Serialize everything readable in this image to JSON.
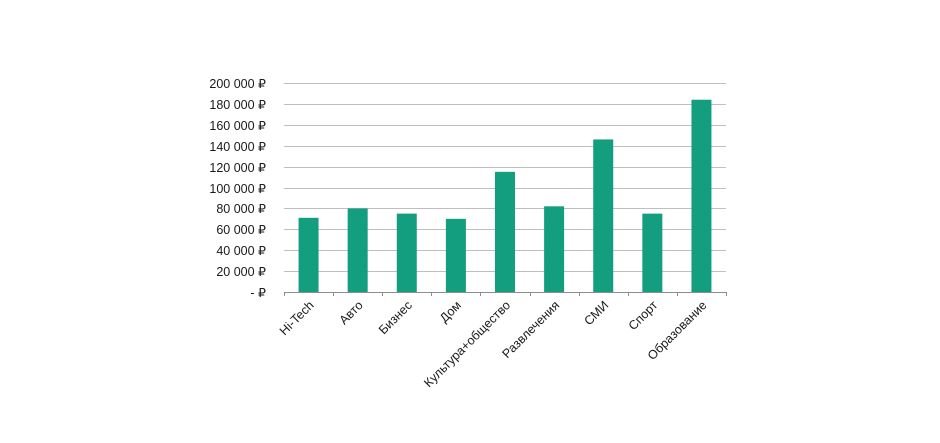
{
  "chart_data": {
    "type": "bar",
    "title": "",
    "xlabel": "",
    "ylabel": "",
    "categories": [
      "Hi-Tech",
      "Авто",
      "Бизнес",
      "Дом",
      "Культура+общество",
      "Развлечения",
      "СМИ",
      "Спорт",
      "Образование"
    ],
    "values": [
      71000,
      80000,
      75000,
      70000,
      115000,
      82000,
      146000,
      75000,
      184000
    ],
    "ylim": [
      0,
      200000
    ],
    "yticks": [
      0,
      20000,
      40000,
      60000,
      80000,
      100000,
      120000,
      140000,
      160000,
      180000,
      200000
    ],
    "ytick_labels": [
      "-  ₽",
      "20 000 ₽",
      "40 000 ₽",
      "60 000 ₽",
      "80 000 ₽",
      "100 000 ₽",
      "120 000 ₽",
      "140 000 ₽",
      "160 000 ₽",
      "180 000 ₽",
      "200 000 ₽"
    ],
    "grid": true,
    "legend": "none",
    "bar_color": "#139e7f",
    "grid_color": "#bfbfbf",
    "axis_color": "#8c8c8c"
  }
}
